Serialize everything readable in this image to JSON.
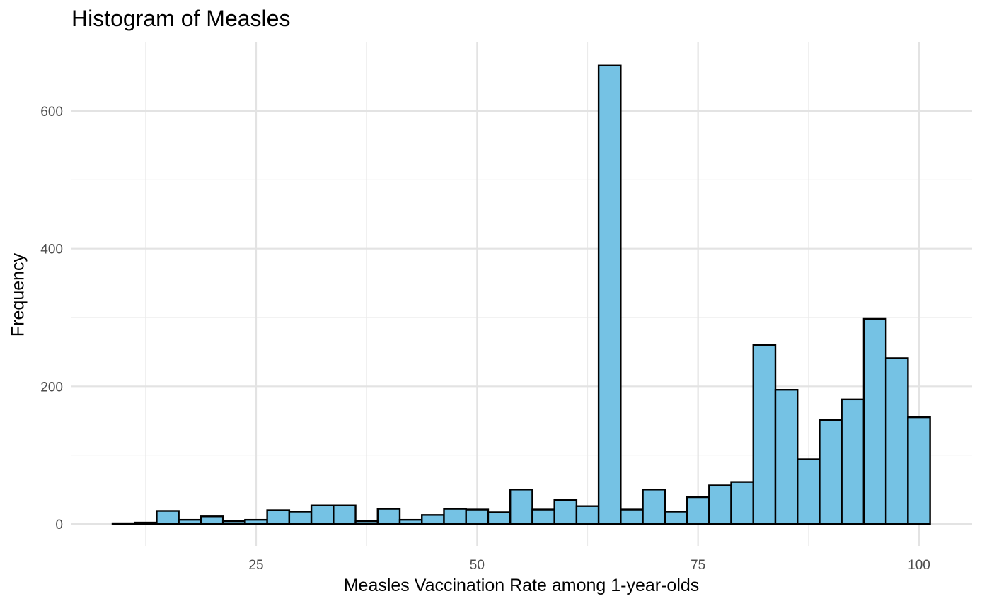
{
  "chart_data": {
    "type": "bar",
    "title": "Histogram of Measles",
    "xlabel": "Measles Vaccination Rate among 1-year-olds",
    "ylabel": "Frequency",
    "xlim": [
      5,
      103
    ],
    "ylim": [
      0,
      670
    ],
    "x_ticks": [
      25,
      50,
      75,
      100
    ],
    "y_ticks": [
      0,
      200,
      400,
      600
    ],
    "grid": true,
    "legend": "none",
    "bin_width": 2.5,
    "bin_centers": [
      10,
      12.5,
      15,
      17.5,
      20,
      22.5,
      25,
      27.5,
      30,
      32.5,
      35,
      37.5,
      40,
      42.5,
      45,
      47.5,
      50,
      52.5,
      55,
      57.5,
      60,
      62.5,
      65,
      67.5,
      70,
      72.5,
      75,
      77.5,
      80,
      82.5,
      85,
      87.5,
      90,
      92.5,
      95,
      97.5,
      100
    ],
    "values": [
      1,
      2,
      19,
      6,
      11,
      4,
      6,
      20,
      18,
      27,
      27,
      4,
      22,
      6,
      13,
      22,
      21,
      17,
      50,
      21,
      35,
      26,
      666,
      21,
      50,
      18,
      39,
      56,
      61,
      260,
      195,
      94,
      151,
      181,
      298,
      241,
      155
    ],
    "fill_color": "#75C2E4",
    "edge_color": "#000000"
  }
}
